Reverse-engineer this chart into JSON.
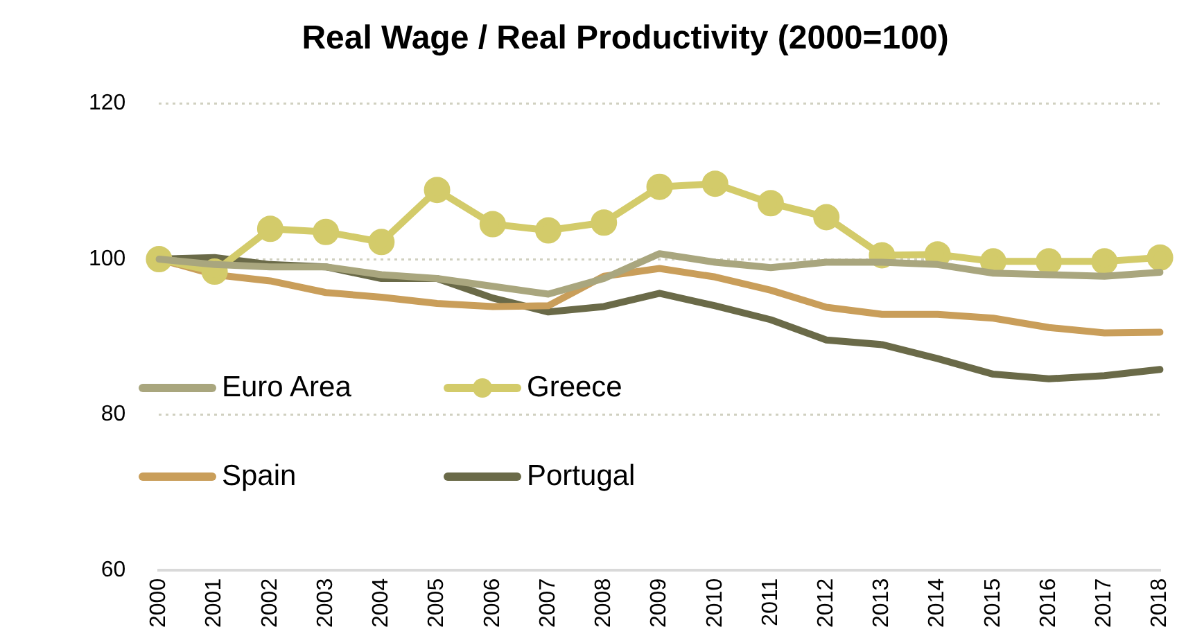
{
  "chart_data": {
    "type": "line",
    "title": "Real Wage / Real Productivity (2000=100)",
    "categories": [
      "2000",
      "2001",
      "2002",
      "2003",
      "2004",
      "2005",
      "2006",
      "2007",
      "2008",
      "2009",
      "2010",
      "2011",
      "2012",
      "2013",
      "2014",
      "2015",
      "2016",
      "2017",
      "2018"
    ],
    "series": [
      {
        "name": "Euro Area",
        "color": "#a9a67e",
        "marker": "none",
        "values": [
          100,
          99.3,
          99,
          99,
          98,
          97.5,
          96.5,
          95.5,
          97.5,
          100.7,
          99.6,
          98.9,
          99.6,
          99.6,
          99.3,
          98.2,
          98,
          97.8,
          98.3
        ]
      },
      {
        "name": "Greece",
        "color": "#d3cb6a",
        "marker": "circle",
        "values": [
          100,
          98.4,
          103.9,
          103.5,
          102.2,
          108.9,
          104.5,
          103.7,
          104.7,
          109.3,
          109.7,
          107.2,
          105.4,
          100.5,
          100.6,
          99.7,
          99.7,
          99.7,
          100.2
        ]
      },
      {
        "name": "Spain",
        "color": "#c99e5a",
        "marker": "none",
        "values": [
          100,
          98,
          97.2,
          95.7,
          95.1,
          94.3,
          93.9,
          94,
          97.8,
          98.8,
          97.7,
          96,
          93.8,
          92.9,
          92.9,
          92.4,
          91.2,
          90.5,
          90.6
        ]
      },
      {
        "name": "Portugal",
        "color": "#6a6a48",
        "marker": "none",
        "values": [
          100,
          100.2,
          99.3,
          99,
          97.5,
          97.5,
          95,
          93.2,
          93.9,
          95.6,
          94,
          92.2,
          89.6,
          89,
          87.2,
          85.2,
          84.6,
          85,
          85.8
        ]
      }
    ],
    "ylim": [
      60,
      120
    ],
    "yticks": [
      60,
      80,
      100,
      120
    ],
    "grid": "y",
    "legend": "bottom left"
  }
}
